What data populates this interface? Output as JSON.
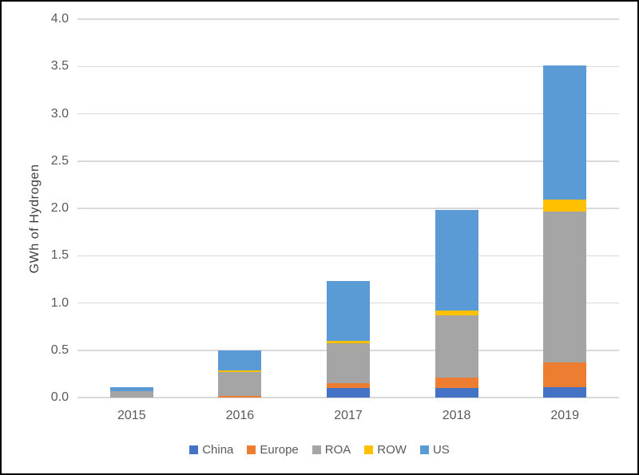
{
  "chart_data": {
    "type": "bar",
    "stacked": true,
    "title": "",
    "xlabel": "",
    "ylabel": "GWh of Hydrogen",
    "categories": [
      "2015",
      "2016",
      "2017",
      "2018",
      "2019"
    ],
    "series": [
      {
        "name": "China",
        "color": "#4472C4",
        "values": [
          0,
          0,
          0.1,
          0.1,
          0.11
        ]
      },
      {
        "name": "Europe",
        "color": "#ED7D31",
        "values": [
          0,
          0.02,
          0.05,
          0.11,
          0.26
        ]
      },
      {
        "name": "ROA",
        "color": "#A5A5A5",
        "values": [
          0.07,
          0.25,
          0.42,
          0.66,
          1.6
        ]
      },
      {
        "name": "ROW",
        "color": "#FFC000",
        "values": [
          0,
          0.02,
          0.03,
          0.05,
          0.12
        ]
      },
      {
        "name": "US",
        "color": "#5B9BD5",
        "values": [
          0.04,
          0.21,
          0.63,
          1.06,
          1.42
        ]
      }
    ],
    "totals": [
      0.11,
      0.5,
      1.23,
      1.98,
      3.51
    ],
    "ylim": [
      0,
      4.0
    ],
    "ytick_step": 0.5,
    "y_ticks": [
      "0.0",
      "0.5",
      "1.0",
      "1.5",
      "2.0",
      "2.5",
      "3.0",
      "3.5",
      "4.0"
    ],
    "grid": true,
    "gridline_color": "#D9D9D9",
    "legend_position": "bottom",
    "legend_labels": [
      "China",
      "Europe",
      "ROA",
      "ROW",
      "US"
    ]
  },
  "colors": {
    "background": "#FFFFFF",
    "frame_border": "#000000",
    "axis_text": "#595959",
    "axis_title_text": "#404040"
  }
}
